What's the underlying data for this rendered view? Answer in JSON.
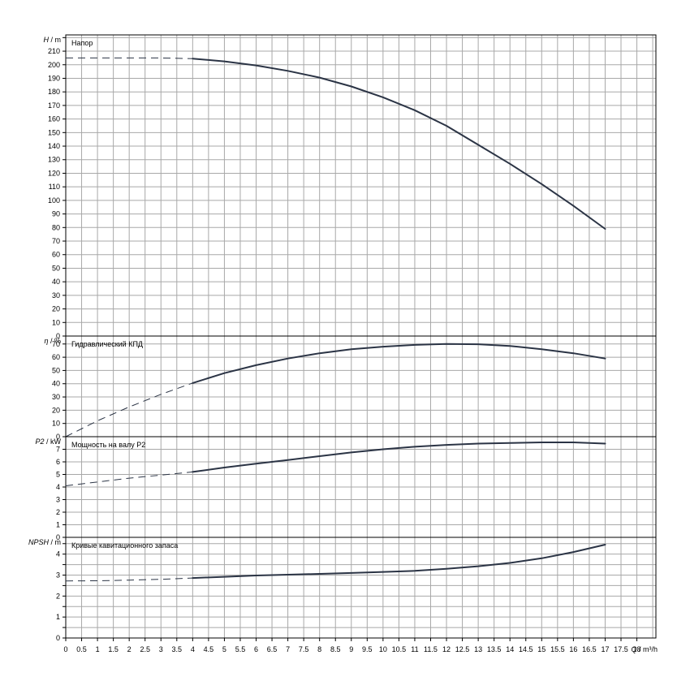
{
  "colors": {
    "curve": "#2b3445",
    "grid_major": "#a8a8a8",
    "grid_minor": "#d4d4d4",
    "frame": "#000000",
    "text": "#000000"
  },
  "x_axis": {
    "label": "Q / m³/h",
    "range": [
      0,
      18.6
    ],
    "tick_labels": [
      "0",
      "0.5",
      "1",
      "1.5",
      "2",
      "2.5",
      "3",
      "3.5",
      "4",
      "4.5",
      "5",
      "5.5",
      "6",
      "6.5",
      "7",
      "7.5",
      "8",
      "8.5",
      "9",
      "9.5",
      "10",
      "10.5",
      "11",
      "11.5",
      "12",
      "12.5",
      "13",
      "13.5",
      "14",
      "14.5",
      "15",
      "15.5",
      "16",
      "16.5",
      "17",
      "17.5",
      "18"
    ]
  },
  "chart_data": [
    {
      "type": "line",
      "title": "Напор",
      "ylabel": "H / m",
      "ylim": [
        0,
        222
      ],
      "ytick_step": 10,
      "ytick_labels": [
        "0",
        "10",
        "20",
        "30",
        "40",
        "50",
        "60",
        "70",
        "80",
        "90",
        "100",
        "110",
        "120",
        "130",
        "140",
        "150",
        "160",
        "170",
        "180",
        "190",
        "200",
        "210"
      ],
      "grid": true,
      "dashed": {
        "x": [
          0,
          1,
          2,
          3,
          4
        ],
        "y": [
          205,
          205,
          205,
          205,
          204.5
        ]
      },
      "solid": {
        "x": [
          4,
          5,
          6,
          7,
          8,
          9,
          10,
          11,
          12,
          13,
          14,
          15,
          16,
          17
        ],
        "y": [
          204.5,
          202.5,
          199.5,
          195.5,
          190.5,
          184,
          176,
          166.5,
          155,
          141,
          127,
          112,
          96,
          79
        ]
      }
    },
    {
      "type": "line",
      "title": "Гидравлический КПД",
      "ylabel": "η / %",
      "ylim": [
        0,
        76
      ],
      "ytick_step": 10,
      "ytick_labels": [
        "0",
        "10",
        "20",
        "30",
        "40",
        "50",
        "60",
        "70"
      ],
      "grid": true,
      "dashed": {
        "x": [
          0,
          1,
          2,
          3,
          4
        ],
        "y": [
          0,
          12,
          22.5,
          32,
          40.5
        ]
      },
      "solid": {
        "x": [
          4,
          5,
          6,
          7,
          8,
          9,
          10,
          11,
          12,
          13,
          14,
          15,
          16,
          17
        ],
        "y": [
          40.5,
          48,
          54,
          59,
          63,
          66,
          68,
          69.3,
          70,
          69.8,
          68.5,
          66,
          63,
          59
        ]
      }
    },
    {
      "type": "line",
      "title": "Мощность на валу P2",
      "ylabel": "P2 / kW",
      "ylim": [
        0,
        8
      ],
      "ytick_step": 1,
      "ytick_labels": [
        "0",
        "1",
        "2",
        "3",
        "4",
        "5",
        "6",
        "7"
      ],
      "grid": true,
      "dashed": {
        "x": [
          0,
          1,
          2,
          3,
          4
        ],
        "y": [
          4.1,
          4.4,
          4.7,
          4.95,
          5.2
        ]
      },
      "solid": {
        "x": [
          4,
          5,
          6,
          7,
          8,
          9,
          10,
          11,
          12,
          13,
          14,
          15,
          16,
          17
        ],
        "y": [
          5.2,
          5.55,
          5.85,
          6.15,
          6.45,
          6.75,
          7.0,
          7.2,
          7.35,
          7.45,
          7.5,
          7.55,
          7.55,
          7.45
        ]
      }
    },
    {
      "type": "line",
      "title": "Кривые кавитационного запаса",
      "ylabel": "NPSH / m",
      "ylim": [
        0,
        4.8
      ],
      "ytick_step": 0.5,
      "ytick_labels": [
        "0",
        "1",
        "2",
        "3",
        "4"
      ],
      "grid": true,
      "dashed": {
        "x": [
          0,
          1,
          2,
          3,
          4
        ],
        "y": [
          2.72,
          2.73,
          2.76,
          2.8,
          2.86
        ]
      },
      "solid": {
        "x": [
          4,
          5,
          6,
          7,
          8,
          9,
          10,
          11,
          12,
          13,
          14,
          15,
          16,
          17
        ],
        "y": [
          2.86,
          2.92,
          2.98,
          3.02,
          3.06,
          3.1,
          3.15,
          3.2,
          3.3,
          3.42,
          3.58,
          3.8,
          4.1,
          4.45
        ]
      }
    }
  ]
}
